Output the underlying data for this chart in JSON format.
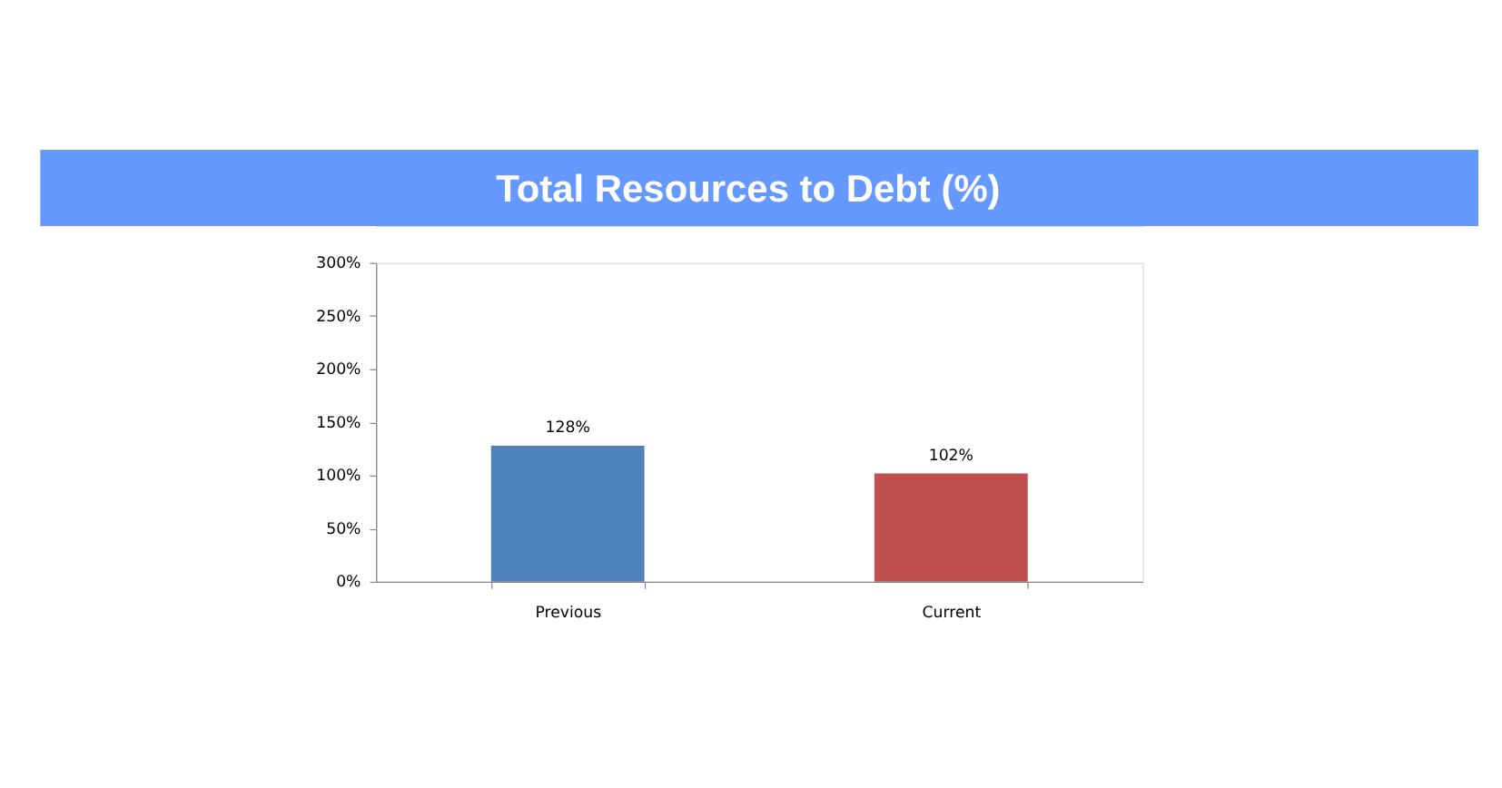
{
  "chart_data": {
    "type": "bar",
    "title": "Total Resources to Debt (%)",
    "categories": [
      "Previous",
      "Current"
    ],
    "values": [
      128,
      102
    ],
    "colors": [
      "#4f81bd",
      "#c0504d"
    ],
    "value_labels": [
      "128%",
      "102%"
    ],
    "ylim": [
      0,
      300
    ],
    "yticks": [
      {
        "value": 0,
        "label": "0%"
      },
      {
        "value": 50,
        "label": "50%"
      },
      {
        "value": 100,
        "label": "100%"
      },
      {
        "value": 150,
        "label": "150%"
      },
      {
        "value": 200,
        "label": "200%"
      },
      {
        "value": 250,
        "label": "250%"
      },
      {
        "value": 300,
        "label": "300%"
      }
    ],
    "grid": false
  }
}
